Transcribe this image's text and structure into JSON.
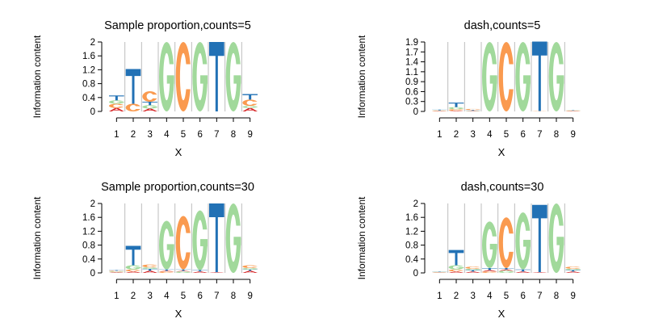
{
  "colors": {
    "A": "#d62728",
    "C": "#fa9a4f",
    "G": "#a1d99b",
    "T": "#2171b5"
  },
  "chart_data": [
    {
      "type": "sequence-logo",
      "title": "Sample proportion,counts=5",
      "xlabel": "X",
      "ylabel": "Information content",
      "x_ticks": [
        "1",
        "2",
        "3",
        "4",
        "5",
        "6",
        "7",
        "8",
        "9"
      ],
      "y_ticks": [
        "0",
        "0.4",
        "0.8",
        "1.2",
        "1.6",
        "2"
      ],
      "ylim": [
        0,
        2
      ],
      "positions": [
        [
          {
            "letter": "A",
            "height": 0.1
          },
          {
            "letter": "C",
            "height": 0.12
          },
          {
            "letter": "G",
            "height": 0.1
          },
          {
            "letter": "T",
            "height": 0.14
          }
        ],
        [
          {
            "letter": "C",
            "height": 0.22
          },
          {
            "letter": "T",
            "height": 1.0
          }
        ],
        [
          {
            "letter": "A",
            "height": 0.08
          },
          {
            "letter": "G",
            "height": 0.1
          },
          {
            "letter": "T",
            "height": 0.1
          },
          {
            "letter": "C",
            "height": 0.3
          }
        ],
        [
          {
            "letter": "G",
            "height": 2.0
          }
        ],
        [
          {
            "letter": "C",
            "height": 2.0
          }
        ],
        [
          {
            "letter": "G",
            "height": 2.0
          }
        ],
        [
          {
            "letter": "T",
            "height": 2.0
          }
        ],
        [
          {
            "letter": "G",
            "height": 2.0
          }
        ],
        [
          {
            "letter": "A",
            "height": 0.1
          },
          {
            "letter": "G",
            "height": 0.06
          },
          {
            "letter": "C",
            "height": 0.18
          },
          {
            "letter": "T",
            "height": 0.16
          }
        ]
      ]
    },
    {
      "type": "sequence-logo",
      "title": "dash,counts=5",
      "xlabel": "X",
      "ylabel": "Information content",
      "x_ticks": [
        "1",
        "2",
        "3",
        "4",
        "5",
        "6",
        "7",
        "8",
        "9"
      ],
      "y_ticks": [
        "0",
        "0.3",
        "0.6",
        "0.9",
        "1.1",
        "1.4",
        "1.7",
        "1.9"
      ],
      "ylim": [
        0,
        1.9
      ],
      "positions": [
        [
          {
            "letter": "A",
            "height": 0.01
          },
          {
            "letter": "C",
            "height": 0.01
          },
          {
            "letter": "G",
            "height": 0.01
          },
          {
            "letter": "T",
            "height": 0.02
          }
        ],
        [
          {
            "letter": "A",
            "height": 0.02
          },
          {
            "letter": "C",
            "height": 0.04
          },
          {
            "letter": "G",
            "height": 0.06
          },
          {
            "letter": "T",
            "height": 0.12
          }
        ],
        [
          {
            "letter": "A",
            "height": 0.01
          },
          {
            "letter": "G",
            "height": 0.01
          },
          {
            "letter": "T",
            "height": 0.02
          },
          {
            "letter": "C",
            "height": 0.03
          }
        ],
        [
          {
            "letter": "G",
            "height": 1.9
          }
        ],
        [
          {
            "letter": "C",
            "height": 1.9
          }
        ],
        [
          {
            "letter": "G",
            "height": 1.9
          }
        ],
        [
          {
            "letter": "C",
            "height": 0.01
          },
          {
            "letter": "T",
            "height": 1.9
          }
        ],
        [
          {
            "letter": "G",
            "height": 1.9
          }
        ],
        [
          {
            "letter": "A",
            "height": 0.01
          },
          {
            "letter": "C",
            "height": 0.01
          },
          {
            "letter": "G",
            "height": 0.01
          },
          {
            "letter": "T",
            "height": 0.01
          }
        ]
      ]
    },
    {
      "type": "sequence-logo",
      "title": "Sample proportion,counts=30",
      "xlabel": "X",
      "ylabel": "Information content",
      "x_ticks": [
        "1",
        "2",
        "3",
        "4",
        "5",
        "6",
        "7",
        "8",
        "9"
      ],
      "y_ticks": [
        "0",
        "0.4",
        "0.8",
        "1.2",
        "1.6",
        "2"
      ],
      "ylim": [
        0,
        2
      ],
      "positions": [
        [
          {
            "letter": "A",
            "height": 0.02
          },
          {
            "letter": "G",
            "height": 0.02
          },
          {
            "letter": "C",
            "height": 0.02
          },
          {
            "letter": "T",
            "height": 0.02
          }
        ],
        [
          {
            "letter": "A",
            "height": 0.04
          },
          {
            "letter": "C",
            "height": 0.06
          },
          {
            "letter": "G",
            "height": 0.12
          },
          {
            "letter": "T",
            "height": 0.56
          }
        ],
        [
          {
            "letter": "A",
            "height": 0.06
          },
          {
            "letter": "T",
            "height": 0.06
          },
          {
            "letter": "G",
            "height": 0.04
          },
          {
            "letter": "C",
            "height": 0.08
          }
        ],
        [
          {
            "letter": "C",
            "height": 0.04
          },
          {
            "letter": "A",
            "height": 0.02
          },
          {
            "letter": "T",
            "height": 0.04
          },
          {
            "letter": "G",
            "height": 1.4
          }
        ],
        [
          {
            "letter": "G",
            "height": 0.04
          },
          {
            "letter": "A",
            "height": 0.02
          },
          {
            "letter": "T",
            "height": 0.04
          },
          {
            "letter": "C",
            "height": 1.54
          }
        ],
        [
          {
            "letter": "A",
            "height": 0.04
          },
          {
            "letter": "T",
            "height": 0.04
          },
          {
            "letter": "G",
            "height": 1.72
          }
        ],
        [
          {
            "letter": "A",
            "height": 0.02
          },
          {
            "letter": "T",
            "height": 1.98
          }
        ],
        [
          {
            "letter": "G",
            "height": 2.0
          }
        ],
        [
          {
            "letter": "A",
            "height": 0.06
          },
          {
            "letter": "T",
            "height": 0.04
          },
          {
            "letter": "G",
            "height": 0.04
          },
          {
            "letter": "C",
            "height": 0.08
          }
        ]
      ]
    },
    {
      "type": "sequence-logo",
      "title": "dash,counts=30",
      "xlabel": "X",
      "ylabel": "Information content",
      "x_ticks": [
        "1",
        "2",
        "3",
        "4",
        "5",
        "6",
        "7",
        "8",
        "9"
      ],
      "y_ticks": [
        "0",
        "0.4",
        "0.8",
        "1.2",
        "1.6",
        "2"
      ],
      "ylim": [
        0,
        2
      ],
      "positions": [
        [
          {
            "letter": "A",
            "height": 0.01
          },
          {
            "letter": "C",
            "height": 0.01
          },
          {
            "letter": "G",
            "height": 0.01
          },
          {
            "letter": "T",
            "height": 0.01
          }
        ],
        [
          {
            "letter": "A",
            "height": 0.04
          },
          {
            "letter": "C",
            "height": 0.06
          },
          {
            "letter": "G",
            "height": 0.12
          },
          {
            "letter": "T",
            "height": 0.44
          }
        ],
        [
          {
            "letter": "A",
            "height": 0.04
          },
          {
            "letter": "T",
            "height": 0.04
          },
          {
            "letter": "G",
            "height": 0.04
          },
          {
            "letter": "C",
            "height": 0.06
          }
        ],
        [
          {
            "letter": "C",
            "height": 0.04
          },
          {
            "letter": "A",
            "height": 0.04
          },
          {
            "letter": "T",
            "height": 0.06
          },
          {
            "letter": "G",
            "height": 1.34
          }
        ],
        [
          {
            "letter": "G",
            "height": 0.06
          },
          {
            "letter": "A",
            "height": 0.04
          },
          {
            "letter": "T",
            "height": 0.04
          },
          {
            "letter": "C",
            "height": 1.46
          }
        ],
        [
          {
            "letter": "A",
            "height": 0.04
          },
          {
            "letter": "T",
            "height": 0.06
          },
          {
            "letter": "G",
            "height": 1.64
          }
        ],
        [
          {
            "letter": "A",
            "height": 0.02
          },
          {
            "letter": "T",
            "height": 1.94
          }
        ],
        [
          {
            "letter": "G",
            "height": 2.0
          }
        ],
        [
          {
            "letter": "A",
            "height": 0.04
          },
          {
            "letter": "T",
            "height": 0.04
          },
          {
            "letter": "G",
            "height": 0.04
          },
          {
            "letter": "C",
            "height": 0.06
          }
        ]
      ]
    }
  ]
}
